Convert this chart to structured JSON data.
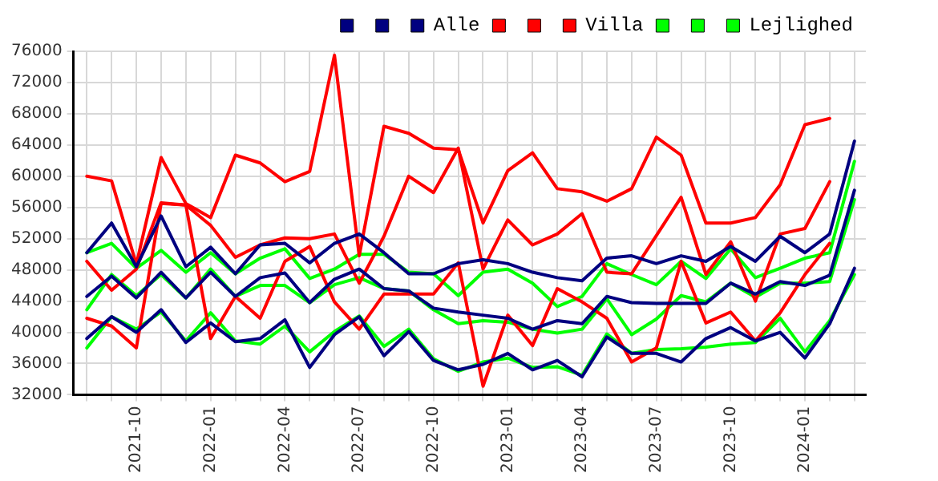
{
  "chart_data": {
    "type": "line",
    "x": [
      "2021-08",
      "2021-09",
      "2021-10",
      "2021-11",
      "2021-12",
      "2022-01",
      "2022-02",
      "2022-03",
      "2022-04",
      "2022-05",
      "2022-06",
      "2022-07",
      "2022-08",
      "2022-09",
      "2022-10",
      "2022-11",
      "2022-12",
      "2023-01",
      "2023-02",
      "2023-03",
      "2023-04",
      "2023-05",
      "2023-06",
      "2023-07",
      "2023-08",
      "2023-09",
      "2023-10",
      "2023-11",
      "2023-12",
      "2024-01",
      "2024-02",
      "2024-03"
    ],
    "series": [
      {
        "color": "#000080",
        "values": [
          50200,
          54000,
          48400,
          54900,
          48400,
          50900,
          47500,
          51200,
          51400,
          48900,
          51400,
          52600,
          50200,
          47500,
          47500,
          48800,
          49300,
          48800,
          47700,
          47000,
          46600,
          49500,
          49800,
          48800,
          49800,
          49100,
          51000,
          49100,
          52300,
          50200,
          52600,
          64500
        ]
      },
      {
        "color": "#000080",
        "values": [
          44600,
          47200,
          44400,
          47700,
          44400,
          47700,
          44600,
          47000,
          47600,
          43800,
          46800,
          48100,
          45600,
          45300,
          43100,
          42600,
          42200,
          41800,
          40400,
          41500,
          41100,
          44600,
          43800,
          43700,
          43700,
          43700,
          46300,
          44900,
          46500,
          46000,
          47300,
          58200
        ]
      },
      {
        "name": "Alle",
        "color": "#000080",
        "values": [
          39200,
          42000,
          40000,
          42900,
          38700,
          41200,
          38800,
          39200,
          41600,
          35500,
          39700,
          42000,
          37000,
          40100,
          36400,
          35200,
          35900,
          37300,
          35200,
          36400,
          34300,
          39400,
          37300,
          37300,
          36200,
          39200,
          40600,
          38900,
          40000,
          36700,
          41100,
          48200
        ]
      },
      {
        "color": "#ff0000",
        "values": [
          60000,
          59400,
          48700,
          62400,
          56500,
          54700,
          62700,
          61700,
          59300,
          60600,
          75500,
          49800,
          66400,
          65500,
          63600,
          63400,
          54000,
          60700,
          63000,
          58400,
          58000,
          56800,
          58400,
          65000,
          62700,
          54000,
          54000,
          54700,
          58900,
          66600,
          67400,
          null
        ]
      },
      {
        "color": "#ff0000",
        "values": [
          49100,
          45400,
          48100,
          56600,
          56300,
          53700,
          49600,
          51200,
          52100,
          52000,
          52600,
          46300,
          52300,
          60000,
          57900,
          63600,
          48100,
          54400,
          51200,
          52600,
          55200,
          47700,
          47500,
          52400,
          57300,
          47400,
          51600,
          44000,
          52600,
          53300,
          59300,
          null
        ]
      },
      {
        "name": "Villa",
        "color": "#ff0000",
        "values": [
          41800,
          40800,
          38000,
          56500,
          56300,
          39200,
          44600,
          41800,
          49100,
          51000,
          43900,
          40400,
          44900,
          44900,
          44900,
          48900,
          33100,
          42200,
          38300,
          45600,
          43900,
          41800,
          36200,
          38000,
          49100,
          41200,
          42600,
          38900,
          42500,
          47400,
          51400,
          null
        ]
      },
      {
        "color": "#00ff00",
        "values": [
          50200,
          51400,
          48200,
          50500,
          47700,
          50200,
          47500,
          49500,
          50700,
          46900,
          48100,
          50000,
          50000,
          47700,
          47500,
          44700,
          47700,
          48100,
          46300,
          43300,
          44600,
          48800,
          47400,
          46100,
          49100,
          46900,
          50700,
          47000,
          48200,
          49500,
          50200,
          61900
        ]
      },
      {
        "color": "#00ff00",
        "values": [
          42900,
          47400,
          44700,
          47400,
          44400,
          48100,
          44600,
          46000,
          46000,
          43800,
          46100,
          47000,
          45600,
          45300,
          42900,
          41100,
          41500,
          41300,
          40400,
          39900,
          40400,
          44300,
          39700,
          41700,
          44700,
          43900,
          46300,
          44500,
          46300,
          46300,
          46500,
          57000
        ]
      },
      {
        "name": "Lejlighed",
        "color": "#00ff00",
        "values": [
          38000,
          42000,
          40400,
          42600,
          38900,
          42500,
          38900,
          38500,
          40800,
          37500,
          40100,
          42100,
          38200,
          40400,
          36600,
          35000,
          36200,
          36700,
          35500,
          35600,
          34500,
          39800,
          37300,
          37800,
          37900,
          38100,
          38500,
          38700,
          41800,
          37500,
          41500,
          47400
        ]
      }
    ],
    "xlim": [
      "2021-07-15",
      "2024-03-15"
    ],
    "xticks": [
      {
        "value": "2021-08",
        "label": null
      },
      {
        "value": "2021-09",
        "label": null
      },
      "2021-10",
      {
        "value": "2021-11",
        "label": null
      },
      {
        "value": "2021-12",
        "label": null
      },
      "2022-01",
      {
        "value": "2022-02",
        "label": null
      },
      {
        "value": "2022-03",
        "label": null
      },
      "2022-04",
      {
        "value": "2022-05",
        "label": null
      },
      {
        "value": "2022-06",
        "label": null
      },
      "2022-07",
      {
        "value": "2022-08",
        "label": null
      },
      {
        "value": "2022-09",
        "label": null
      },
      "2022-10",
      {
        "value": "2022-11",
        "label": null
      },
      {
        "value": "2022-12",
        "label": null
      },
      "2023-01",
      {
        "value": "2023-02",
        "label": null
      },
      {
        "value": "2023-03",
        "label": null
      },
      "2023-04",
      {
        "value": "2023-05",
        "label": null
      },
      {
        "value": "2023-06",
        "label": null
      },
      "2023-07",
      {
        "value": "2023-08",
        "label": null
      },
      {
        "value": "2023-09",
        "label": null
      },
      "2023-10",
      {
        "value": "2023-11",
        "label": null
      },
      {
        "value": "2023-12",
        "label": null
      },
      "2024-01",
      {
        "value": "2024-02",
        "label": null
      },
      {
        "value": "2024-03",
        "label": null
      }
    ],
    "ylim": [
      32000,
      76000
    ],
    "yticks": [
      32000,
      36000,
      40000,
      44000,
      48000,
      52000,
      56000,
      60000,
      64000,
      68000,
      72000,
      76000
    ],
    "grid": true,
    "legend": "top right"
  }
}
